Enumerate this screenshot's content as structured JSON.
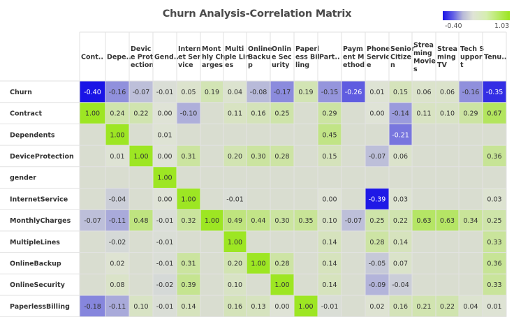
{
  "chart_data": {
    "type": "heatmap",
    "title": "Churn Analysis-Correlation Matrix",
    "legend": {
      "min_label": "-0.40",
      "max_label": "1.03",
      "min": -0.4,
      "max": 1.03
    },
    "columns": [
      [
        "Cont.."
      ],
      [
        "Depe.."
      ],
      [
        "Devic",
        "e Prot",
        "ection"
      ],
      [
        "Gend.."
      ],
      [
        "Intern",
        "et Ser",
        "vice"
      ],
      [
        "Mont",
        "hly Ch",
        "arges"
      ],
      [
        "Multi",
        "ple Lin",
        "es"
      ],
      [
        "Online",
        "Backu",
        "p"
      ],
      [
        "Onlin",
        "e Sec",
        "urity"
      ],
      [
        "Paperl",
        "ess Bil",
        "ling"
      ],
      [
        "Part.."
      ],
      [
        "Paym",
        "ent M",
        "ethod"
      ],
      [
        "Phone",
        "Servic",
        "e"
      ],
      [
        "Senior",
        "Citize",
        "n"
      ],
      [
        "Strea",
        "ming",
        "Movie",
        "s"
      ],
      [
        "Strea",
        "ming",
        "TV"
      ],
      [
        "Tech S",
        "uppor",
        "t"
      ],
      [
        "Tenu.."
      ]
    ],
    "rows": [
      "Churn",
      "Contract",
      "Dependents",
      "DeviceProtection",
      "gender",
      "InternetService",
      "MonthlyCharges",
      "MultipleLines",
      "OnlineBackup",
      "OnlineSecurity",
      "PaperlessBilling"
    ],
    "values": [
      [
        -0.4,
        -0.16,
        -0.07,
        -0.01,
        0.05,
        0.19,
        0.04,
        -0.08,
        -0.17,
        0.19,
        -0.15,
        -0.26,
        0.01,
        0.15,
        0.06,
        0.06,
        -0.16,
        -0.35
      ],
      [
        1.0,
        0.24,
        0.22,
        0.0,
        -0.1,
        null,
        0.11,
        0.16,
        0.25,
        null,
        0.29,
        null,
        0.0,
        -0.14,
        0.11,
        0.1,
        0.29,
        0.67
      ],
      [
        null,
        1.0,
        null,
        0.01,
        null,
        null,
        null,
        null,
        null,
        null,
        0.45,
        null,
        null,
        -0.21,
        null,
        null,
        null,
        null
      ],
      [
        null,
        0.01,
        1.0,
        0.0,
        0.31,
        null,
        0.2,
        0.3,
        0.28,
        null,
        0.15,
        null,
        -0.07,
        0.06,
        null,
        null,
        null,
        0.36
      ],
      [
        null,
        null,
        null,
        1.0,
        null,
        null,
        null,
        null,
        null,
        null,
        null,
        null,
        null,
        null,
        null,
        null,
        null,
        null
      ],
      [
        null,
        -0.04,
        null,
        0.0,
        1.0,
        null,
        -0.01,
        null,
        null,
        null,
        0.0,
        null,
        -0.39,
        0.03,
        null,
        null,
        null,
        0.03
      ],
      [
        -0.07,
        -0.11,
        0.48,
        -0.01,
        0.32,
        1.0,
        0.49,
        0.44,
        0.3,
        0.35,
        0.1,
        -0.07,
        0.25,
        0.22,
        0.63,
        0.63,
        0.34,
        0.25
      ],
      [
        null,
        -0.02,
        null,
        -0.01,
        null,
        null,
        1.0,
        null,
        null,
        null,
        0.14,
        null,
        0.28,
        0.14,
        null,
        null,
        null,
        0.33
      ],
      [
        null,
        0.02,
        null,
        -0.01,
        0.31,
        null,
        0.2,
        1.0,
        0.28,
        null,
        0.14,
        null,
        -0.05,
        0.07,
        null,
        null,
        null,
        0.36
      ],
      [
        null,
        0.08,
        null,
        -0.02,
        0.39,
        null,
        0.1,
        null,
        1.0,
        null,
        0.14,
        null,
        -0.09,
        -0.04,
        null,
        null,
        null,
        0.33
      ],
      [
        -0.18,
        -0.11,
        0.1,
        -0.01,
        0.14,
        null,
        0.16,
        0.13,
        0.0,
        1.0,
        -0.01,
        null,
        0.02,
        0.16,
        0.21,
        0.22,
        0.04,
        0.01
      ]
    ]
  }
}
